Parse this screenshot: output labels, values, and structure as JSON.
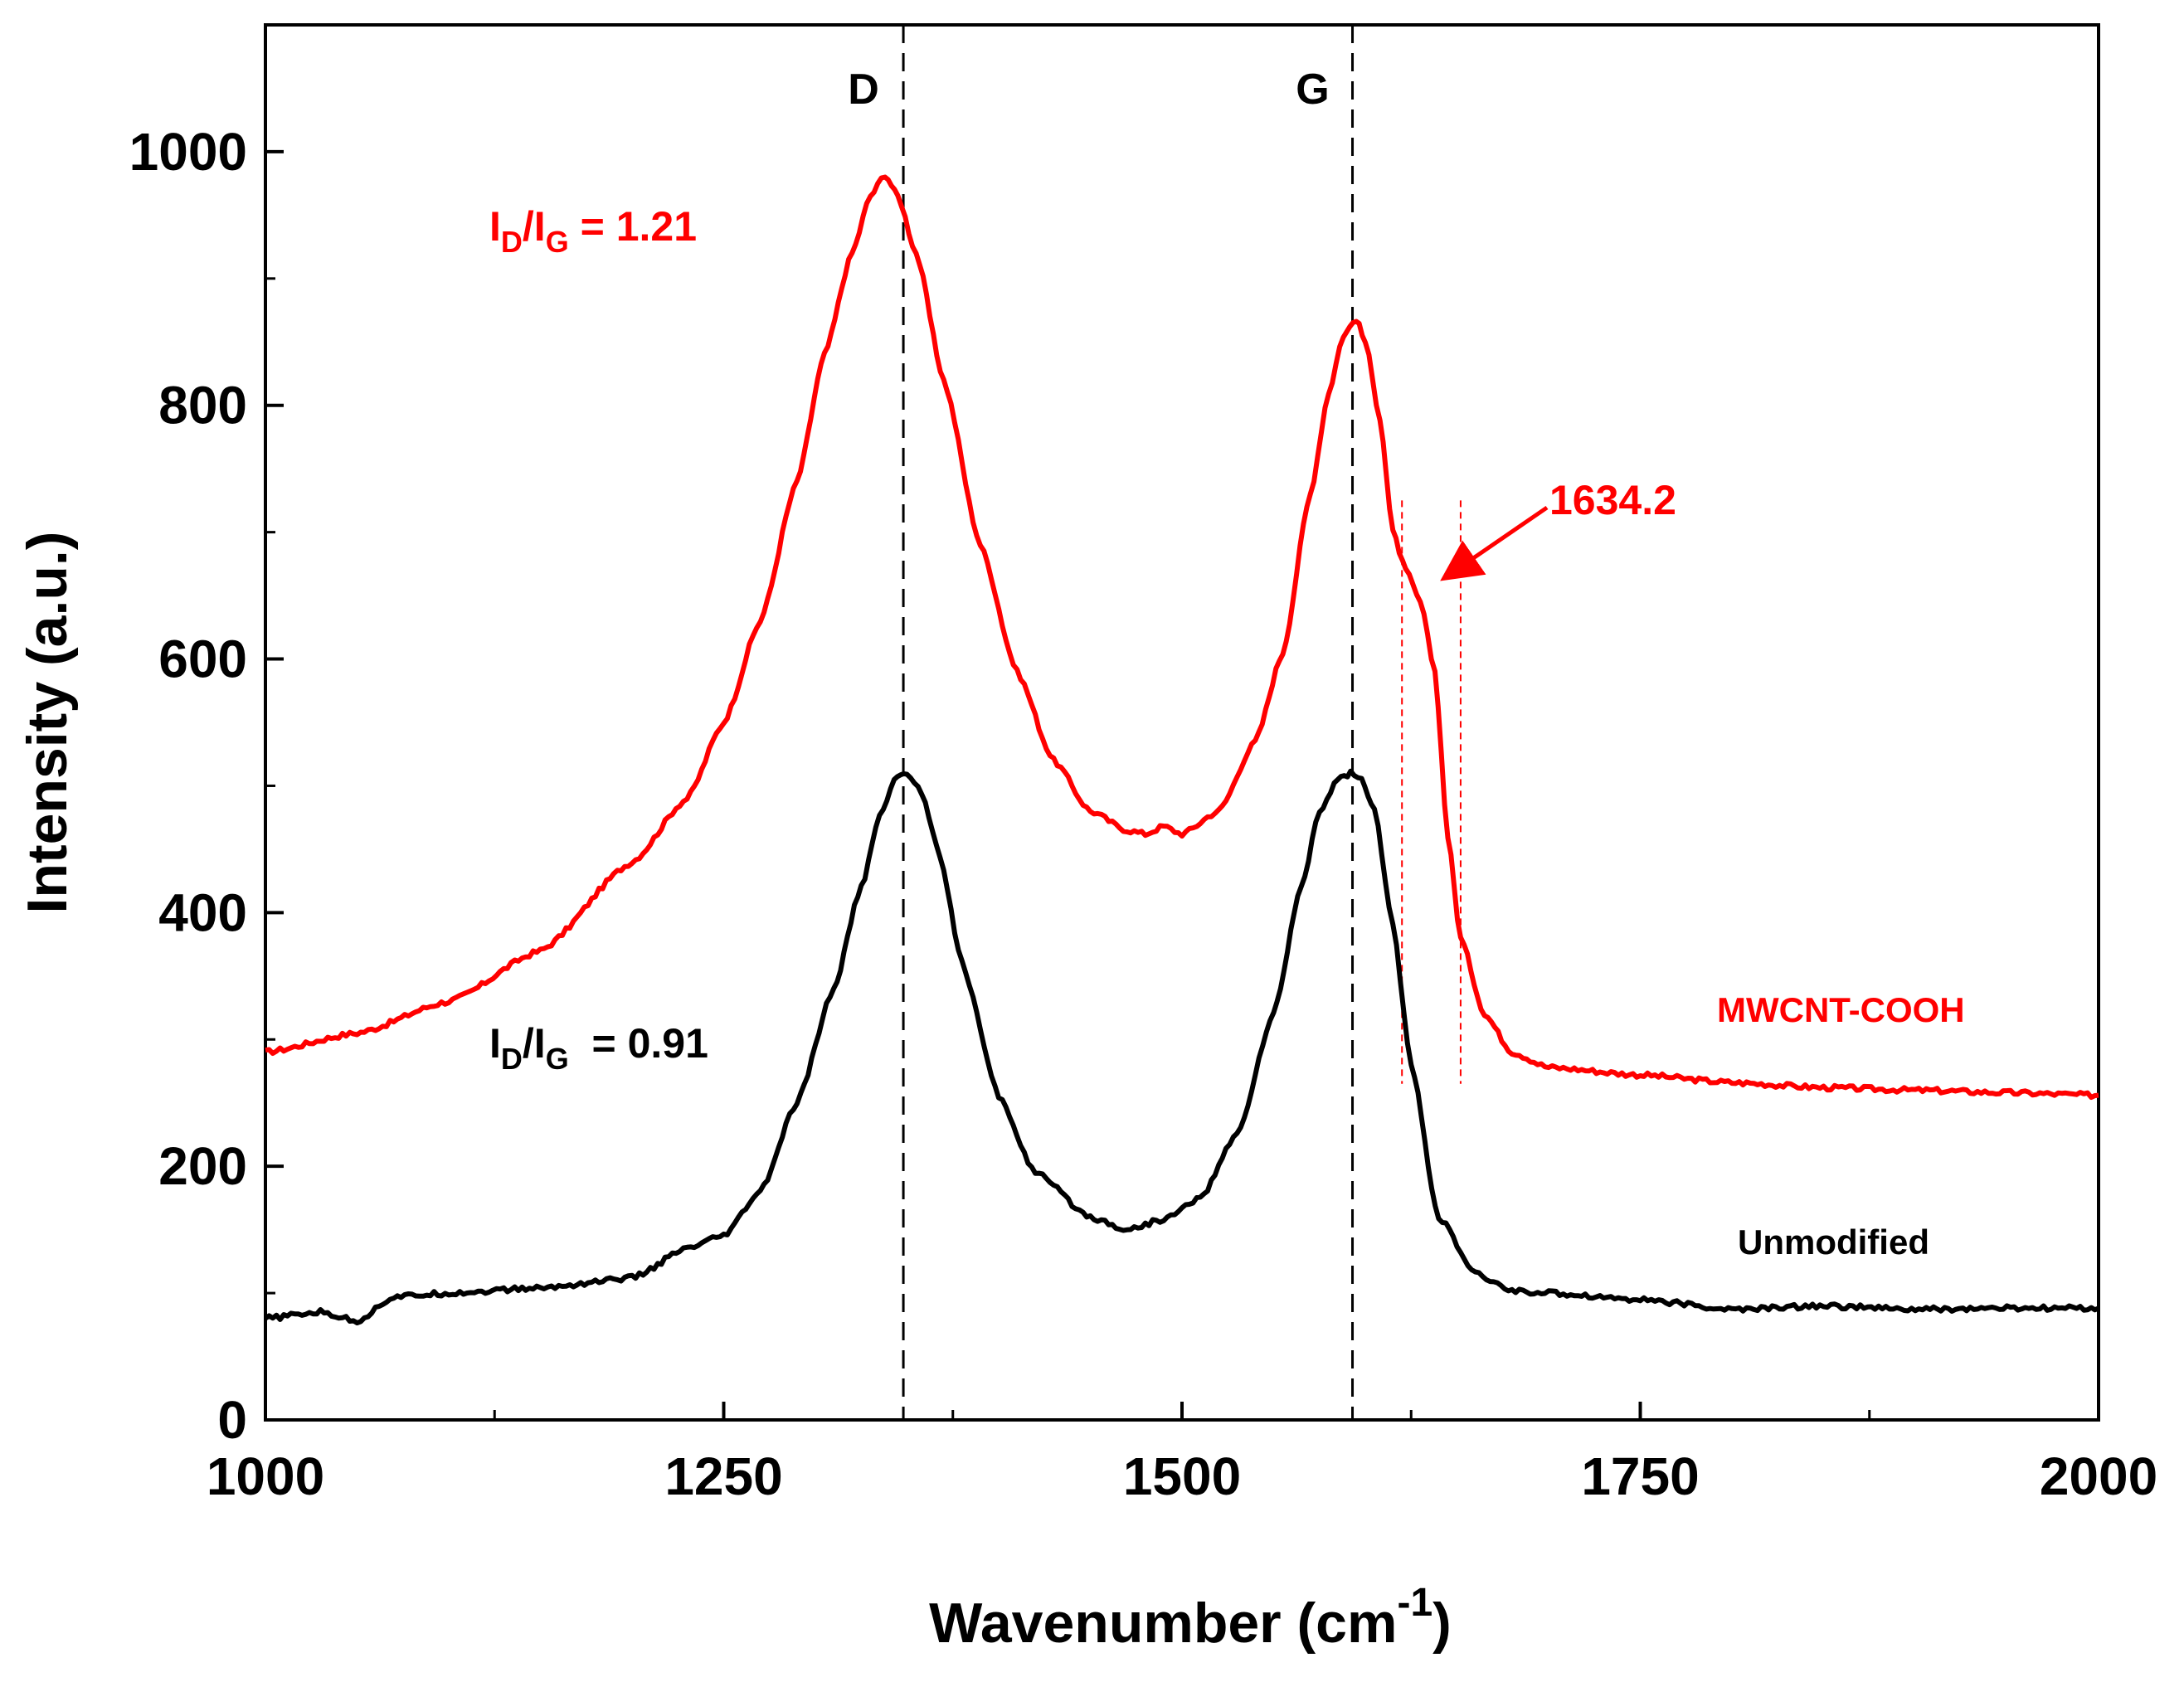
{
  "chart_data": {
    "type": "line",
    "title": "",
    "xlabel": "Wavenumber (cm",
    "xlabel_sup": "-1",
    "xlabel_close": ")",
    "ylabel": "Intensity (a.u.)",
    "xlim": [
      1000,
      2000
    ],
    "ylim": [
      0,
      1100
    ],
    "xticks": [
      1000,
      1250,
      1500,
      1750,
      2000
    ],
    "yticks": [
      0,
      200,
      400,
      600,
      800,
      1000
    ],
    "grid": false,
    "series": [
      {
        "name": "MWCNT-COOH",
        "color": "#ff0000",
        "x": [
          1000,
          1050,
          1100,
          1150,
          1200,
          1230,
          1250,
          1270,
          1290,
          1305,
          1320,
          1330,
          1338,
          1345,
          1355,
          1370,
          1390,
          1410,
          1430,
          1450,
          1470,
          1480,
          1490,
          1500,
          1520,
          1540,
          1555,
          1570,
          1580,
          1588,
          1595,
          1600,
          1608,
          1615,
          1622,
          1630,
          1638,
          1645,
          1652,
          1665,
          1680,
          1700,
          1750,
          1800,
          1850,
          1900,
          1950,
          2000
        ],
        "y": [
          290,
          305,
          330,
          370,
          440,
          490,
          550,
          630,
          740,
          840,
          920,
          965,
          982,
          965,
          920,
          820,
          690,
          590,
          520,
          480,
          465,
          462,
          468,
          462,
          480,
          535,
          605,
          730,
          810,
          855,
          868,
          850,
          790,
          700,
          670,
          645,
          590,
          460,
          380,
          320,
          290,
          278,
          272,
          266,
          262,
          260,
          258,
          256
        ]
      },
      {
        "name": "Unmodified",
        "color": "#000000",
        "x": [
          1000,
          1030,
          1050,
          1070,
          1100,
          1150,
          1200,
          1230,
          1250,
          1270,
          1290,
          1310,
          1325,
          1335,
          1343,
          1350,
          1358,
          1368,
          1380,
          1400,
          1420,
          1450,
          1470,
          1490,
          1510,
          1530,
          1550,
          1565,
          1575,
          1585,
          1592,
          1598,
          1605,
          1615,
          1625,
          1640,
          1660,
          1680,
          1700,
          1750,
          1800,
          1850,
          1900,
          1950,
          2000
        ],
        "y": [
          80,
          85,
          78,
          97,
          100,
          104,
          112,
          135,
          145,
          180,
          250,
          340,
          420,
          475,
          505,
          510,
          495,
          445,
          360,
          255,
          195,
          160,
          150,
          158,
          175,
          225,
          320,
          420,
          480,
          505,
          510,
          505,
          480,
          390,
          280,
          160,
          115,
          102,
          100,
          95,
          87,
          90,
          87,
          88,
          88
        ]
      }
    ],
    "reference_lines": [
      {
        "label": "D",
        "x": 1348
      },
      {
        "label": "G",
        "x": 1593
      }
    ],
    "shoulder_lines": [
      1620,
      1652
    ],
    "annotations": {
      "red_ratio": {
        "prefix": "I",
        "sub1": "D",
        "slash": "/I",
        "sub2": "G",
        "value": " = 1.21"
      },
      "black_ratio": {
        "prefix": "I",
        "sub1": "D",
        "slash": "/I",
        "sub2": "G",
        "value": "  = 0.91"
      },
      "shoulder_value": "1634.2",
      "shoulder_arrow_target": {
        "x": 1640,
        "y": 660
      },
      "red_series_label": "MWCNT-COOH",
      "black_series_label": "Unmodified"
    }
  }
}
